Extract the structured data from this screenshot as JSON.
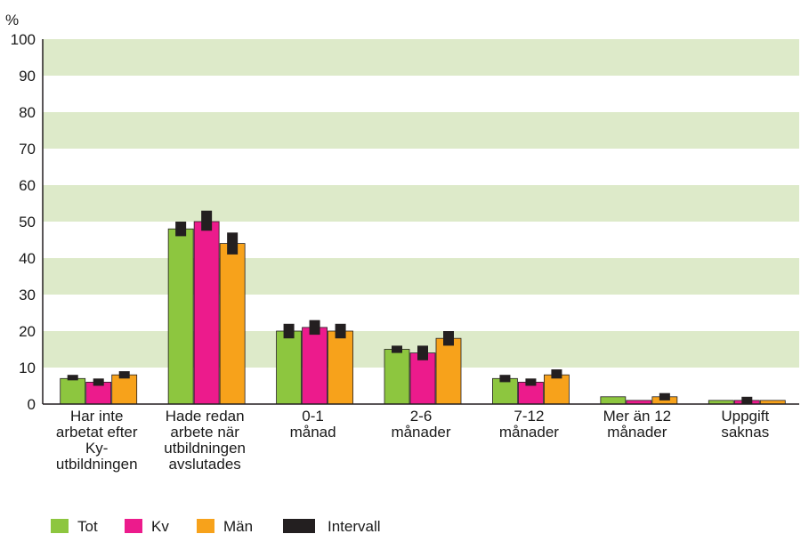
{
  "chart_data": {
    "type": "bar",
    "unit_label": "%",
    "ylim": [
      0,
      100
    ],
    "y_ticks": [
      "0",
      "10",
      "20",
      "30",
      "40",
      "50",
      "60",
      "70",
      "80",
      "90",
      "100"
    ],
    "grid": "alternating bands",
    "legend_position": "bottom-left",
    "categories": [
      [
        "Har inte",
        "arbetat efter",
        "Ky-",
        "utbildningen"
      ],
      [
        "Hade redan",
        "arbete när",
        "utbildningen",
        "avslutades"
      ],
      [
        "0-1",
        "månad"
      ],
      [
        "2-6",
        "månader"
      ],
      [
        "7-12",
        "månader"
      ],
      [
        "Mer än 12",
        "månader"
      ],
      [
        "Uppgift",
        "saknas"
      ]
    ],
    "series": [
      {
        "name": "Tot",
        "color": "#8dc63f",
        "values": [
          7,
          48,
          20,
          15,
          7,
          2,
          1
        ],
        "interval": [
          [
            6.5,
            8
          ],
          [
            46,
            50
          ],
          [
            18,
            22
          ],
          [
            14,
            16
          ],
          [
            6,
            8
          ],
          null,
          null
        ]
      },
      {
        "name": "Kv",
        "color": "#ec1b8c",
        "values": [
          6,
          50,
          21,
          14,
          6,
          1,
          1
        ],
        "interval": [
          [
            5,
            7
          ],
          [
            47.5,
            53
          ],
          [
            19,
            23
          ],
          [
            12,
            16
          ],
          [
            5,
            7
          ],
          null,
          [
            0,
            2
          ]
        ]
      },
      {
        "name": "Män",
        "color": "#f7a21b",
        "values": [
          8,
          44,
          20,
          18,
          8,
          2,
          1
        ],
        "interval": [
          [
            7,
            9
          ],
          [
            41,
            47
          ],
          [
            18,
            22
          ],
          [
            16,
            20
          ],
          [
            7,
            9.5
          ],
          [
            1,
            3
          ],
          null
        ]
      }
    ],
    "interval_label": "Intervall",
    "colors": {
      "band": "#ddeac9",
      "interval": "#231f20"
    }
  }
}
